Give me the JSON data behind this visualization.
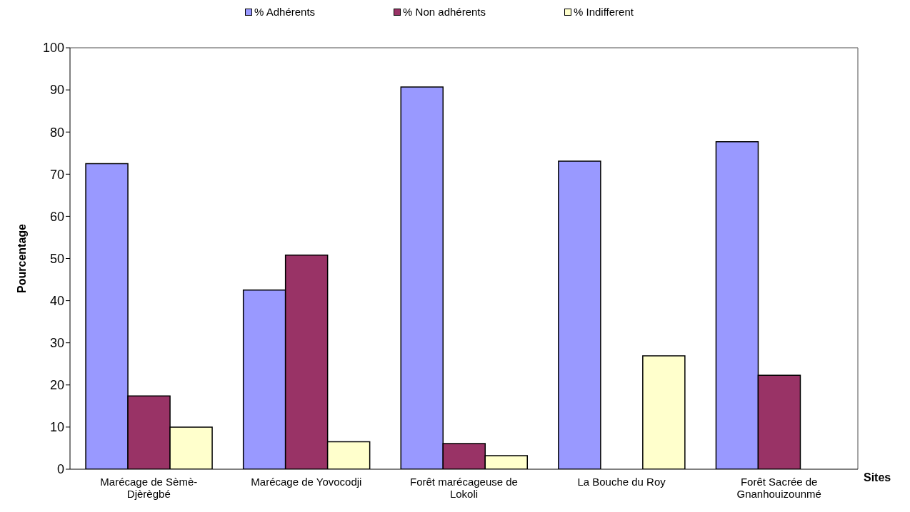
{
  "chart_data": {
    "type": "bar",
    "xlabel": "Sites",
    "ylabel": "Pourcentage",
    "categories": [
      "Marécage de Sèmè-Djèrègbé",
      "Marécage de Yovocodji",
      "Forêt marécageuse de Lokoli",
      "La Bouche du Roy",
      "Forêt Sacrée de Gnanhouizounmé"
    ],
    "series": [
      {
        "name": "% Adhérents",
        "color": "#9999ff",
        "values": [
          72.5,
          42.5,
          90.7,
          73.1,
          77.7
        ]
      },
      {
        "name": "% Non adhérents",
        "color": "#993366",
        "values": [
          17.4,
          50.8,
          6.1,
          0,
          22.3
        ]
      },
      {
        "name": "% Indifferent",
        "color": "#ffffcc",
        "values": [
          10.0,
          6.5,
          3.2,
          26.9,
          0
        ]
      }
    ],
    "ylim": [
      0,
      100
    ],
    "yticks": [
      0,
      10,
      20,
      30,
      40,
      50,
      60,
      70,
      80,
      90,
      100
    ],
    "grid": false,
    "legend": "top"
  }
}
